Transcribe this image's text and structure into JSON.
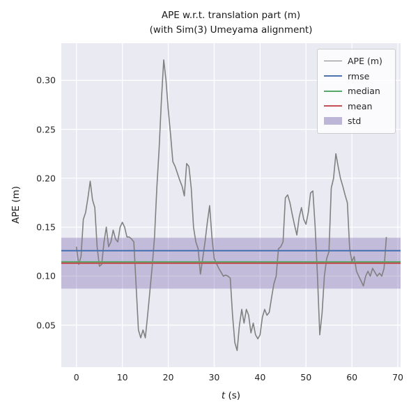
{
  "chart_data": {
    "type": "line",
    "title": "APE w.r.t. translation part (m)",
    "subtitle": "(with Sim(3) Umeyama alignment)",
    "xlabel": "t (s)",
    "xlabel_var": "t",
    "xlabel_unit": " (s)",
    "ylabel": "APE (m)",
    "xlim": [
      -3.3,
      70.6
    ],
    "ylim": [
      0.007,
      0.338
    ],
    "xticks": [
      0,
      10,
      20,
      30,
      40,
      50,
      60,
      70
    ],
    "yticks": [
      0.05,
      0.1,
      0.15,
      0.2,
      0.25,
      0.3
    ],
    "ytick_labels": [
      "0.05",
      "0.10",
      "0.15",
      "0.20",
      "0.25",
      "0.30"
    ],
    "grid": true,
    "legend_position": "upper right",
    "colors": {
      "plot_bg": "#eaeaf2",
      "grid": "#ffffff",
      "series": "#808080",
      "rmse": "#4C72B0",
      "median": "#55A868",
      "mean": "#C44E52",
      "std_band": "#8172B2"
    },
    "stats": {
      "rmse": 0.126,
      "median": 0.1145,
      "mean": 0.1132,
      "std": 0.026
    },
    "std_band_range": [
      0.0872,
      0.1392
    ],
    "series": [
      {
        "name": "APE (m)",
        "color": "#808080",
        "x_start": 0,
        "x_step": 0.5,
        "values": [
          0.13,
          0.112,
          0.12,
          0.158,
          0.165,
          0.18,
          0.197,
          0.178,
          0.17,
          0.13,
          0.11,
          0.112,
          0.135,
          0.15,
          0.13,
          0.135,
          0.147,
          0.138,
          0.135,
          0.15,
          0.155,
          0.15,
          0.14,
          0.14,
          0.138,
          0.135,
          0.09,
          0.045,
          0.037,
          0.045,
          0.037,
          0.06,
          0.085,
          0.11,
          0.14,
          0.19,
          0.23,
          0.28,
          0.321,
          0.3,
          0.27,
          0.245,
          0.217,
          0.212,
          0.205,
          0.198,
          0.192,
          0.182,
          0.215,
          0.212,
          0.19,
          0.15,
          0.135,
          0.128,
          0.102,
          0.118,
          0.135,
          0.155,
          0.172,
          0.14,
          0.118,
          0.113,
          0.108,
          0.104,
          0.1,
          0.101,
          0.1,
          0.098,
          0.06,
          0.032,
          0.024,
          0.05,
          0.066,
          0.052,
          0.066,
          0.06,
          0.042,
          0.052,
          0.04,
          0.036,
          0.04,
          0.058,
          0.066,
          0.06,
          0.063,
          0.078,
          0.092,
          0.1,
          0.128,
          0.13,
          0.135,
          0.18,
          0.183,
          0.175,
          0.163,
          0.152,
          0.142,
          0.16,
          0.17,
          0.158,
          0.153,
          0.165,
          0.185,
          0.187,
          0.15,
          0.1,
          0.04,
          0.062,
          0.1,
          0.118,
          0.125,
          0.19,
          0.2,
          0.225,
          0.212,
          0.2,
          0.192,
          0.183,
          0.175,
          0.128,
          0.115,
          0.12,
          0.105,
          0.1,
          0.095,
          0.09,
          0.1,
          0.105,
          0.1,
          0.108,
          0.104,
          0.1,
          0.103,
          0.1,
          0.108,
          0.14
        ]
      }
    ]
  },
  "legend": {
    "items": [
      {
        "label": "APE (m)",
        "color": "#808080",
        "swatch": "line"
      },
      {
        "label": "rmse",
        "color": "#4C72B0",
        "swatch": "line"
      },
      {
        "label": "median",
        "color": "#55A868",
        "swatch": "line"
      },
      {
        "label": "mean",
        "color": "#C44E52",
        "swatch": "line"
      },
      {
        "label": "std",
        "color": "#8172B2",
        "swatch": "patch"
      }
    ]
  }
}
